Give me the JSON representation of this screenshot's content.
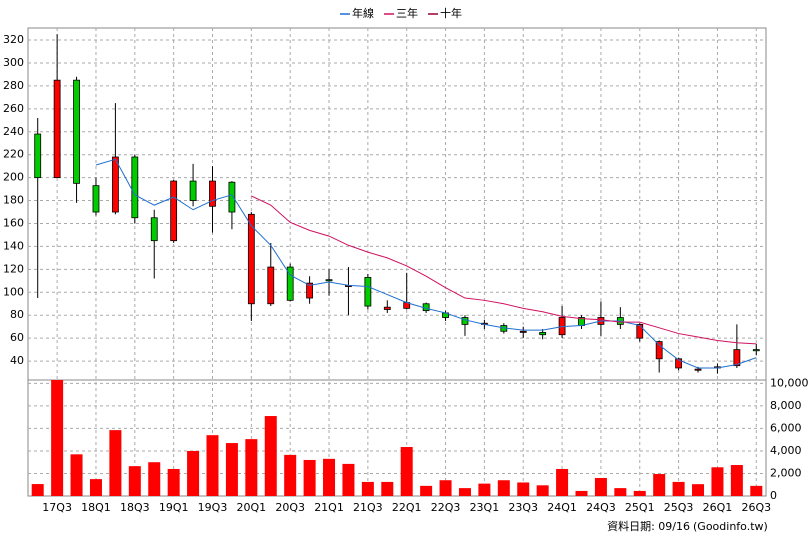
{
  "chart_data": [
    {
      "type": "candlestick",
      "categories": [
        null,
        "17Q3",
        null,
        "18Q1",
        null,
        "18Q3",
        null,
        "19Q1",
        null,
        "19Q3",
        null,
        "20Q1",
        null,
        "20Q3",
        null,
        "21Q1",
        null,
        "21Q3",
        null,
        "22Q1",
        null,
        "22Q3",
        null,
        "23Q1",
        null,
        "23Q3",
        null,
        "24Q1",
        null,
        "24Q3",
        null,
        "25Q1",
        null,
        "25Q3",
        null,
        "26Q1",
        null,
        "26Q3"
      ],
      "open": [
        200,
        285,
        195,
        170,
        218,
        165,
        145,
        197,
        180,
        197,
        170,
        168,
        122,
        93,
        108,
        110,
        106,
        88,
        87,
        91,
        84,
        78,
        72,
        73,
        66,
        66,
        63,
        78,
        71,
        78,
        72,
        72,
        57,
        42,
        33,
        35,
        50,
        49
      ],
      "close": [
        238,
        200,
        285,
        193,
        170,
        218,
        165,
        145,
        197,
        175,
        196,
        90,
        90,
        122,
        95,
        111,
        105,
        113,
        85,
        86,
        90,
        82,
        78,
        72,
        71,
        65,
        65,
        63,
        78,
        72,
        78,
        60,
        42,
        34,
        32,
        34,
        36,
        50
      ],
      "high": [
        252,
        325,
        288,
        200,
        265,
        220,
        172,
        198,
        212,
        210,
        197,
        170,
        143,
        125,
        114,
        120,
        122,
        116,
        93,
        117,
        91,
        84,
        80,
        76,
        73,
        70,
        68,
        88,
        80,
        92,
        87,
        73,
        58,
        43,
        35,
        38,
        72,
        55
      ],
      "low": [
        95,
        200,
        178,
        167,
        168,
        160,
        112,
        143,
        175,
        152,
        155,
        75,
        88,
        92,
        90,
        97,
        80,
        85,
        82,
        85,
        82,
        75,
        62,
        68,
        64,
        60,
        59,
        60,
        68,
        62,
        68,
        57,
        30,
        32,
        30,
        29,
        34,
        45
      ],
      "up_color": "#00cc00",
      "down_color": "#ff0000",
      "ylim": [
        23.5,
        330.5
      ],
      "yticks": [
        40,
        60,
        80,
        100,
        120,
        140,
        160,
        180,
        200,
        220,
        240,
        260,
        280,
        300,
        320
      ],
      "grid": true,
      "series": [
        {
          "name": "年線",
          "color": "#1e6fd0",
          "values": [
            null,
            null,
            null,
            211,
            216,
            185,
            176,
            183,
            172,
            180,
            185,
            158,
            141,
            115,
            106,
            109,
            106,
            105,
            98,
            91,
            86,
            82,
            76,
            72,
            69,
            67,
            67,
            70,
            71,
            75,
            75,
            71,
            54,
            41,
            34,
            34,
            37,
            43
          ]
        },
        {
          "name": "三年",
          "color": "#d01060",
          "values": [
            null,
            null,
            null,
            null,
            null,
            null,
            null,
            null,
            null,
            null,
            null,
            184,
            176,
            161,
            154,
            149,
            141,
            135,
            130,
            123,
            114,
            104,
            95,
            93,
            90,
            86,
            83,
            79,
            77,
            76,
            74,
            74,
            69,
            64,
            61,
            58,
            56,
            55
          ]
        },
        {
          "name": "十年",
          "color": "#990033",
          "values": [
            null,
            null,
            null,
            null,
            null,
            null,
            null,
            null,
            null,
            null,
            null,
            null,
            null,
            null,
            null,
            null,
            null,
            null,
            null,
            null,
            null,
            null,
            null,
            null,
            null,
            null,
            null,
            null,
            null,
            null,
            null,
            null,
            null,
            null,
            null,
            null,
            null,
            null
          ]
        }
      ]
    },
    {
      "type": "bar",
      "values": [
        1060,
        10300,
        3700,
        1500,
        5850,
        2650,
        3000,
        2400,
        4000,
        5400,
        4700,
        5050,
        7100,
        3650,
        3200,
        3300,
        2850,
        1250,
        1250,
        4350,
        900,
        1400,
        700,
        1100,
        1400,
        1200,
        950,
        2400,
        450,
        1600,
        700,
        450,
        1950,
        1250,
        1050,
        2550,
        2750,
        900
      ],
      "color": "#ff0000",
      "ylim": [
        0,
        10300
      ],
      "yticks": [
        0,
        {
          "value": 2000,
          "label": "2,000"
        },
        {
          "value": 4000,
          "label": "4,000"
        },
        {
          "value": 6000,
          "label": "6,000"
        },
        {
          "value": 8000,
          "label": "8,000"
        },
        {
          "value": 10000,
          "label": "10,000"
        }
      ],
      "grid": true
    }
  ],
  "footer": {
    "date": "資料日期: 09/16",
    "credit": "(Goodinfo.tw)"
  }
}
